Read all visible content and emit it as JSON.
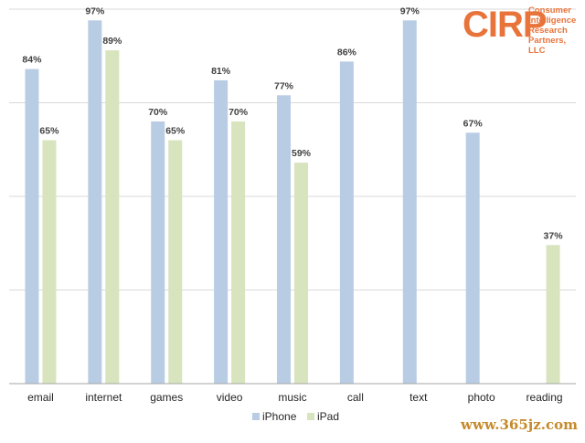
{
  "chart_data": {
    "type": "bar",
    "categories": [
      "email",
      "internet",
      "games",
      "video",
      "music",
      "call",
      "text",
      "photo",
      "reading"
    ],
    "series": [
      {
        "name": "iPhone",
        "color": "#b8cce4",
        "values": [
          84,
          97,
          70,
          81,
          77,
          86,
          97,
          67,
          null
        ]
      },
      {
        "name": "iPad",
        "color": "#d7e4bd",
        "values": [
          65,
          89,
          65,
          70,
          59,
          null,
          null,
          null,
          37
        ]
      }
    ],
    "data_labels": {
      "iPhone": [
        "84%",
        "97%",
        "70%",
        "81%",
        "77%",
        "86%",
        "97%",
        "67%",
        ""
      ],
      "iPad": [
        "65%",
        "89%",
        "65%",
        "70%",
        "59%",
        "",
        "",
        "",
        "37%"
      ]
    },
    "ylim": [
      0,
      100
    ],
    "grid": true,
    "legend_position": "bottom-center",
    "title": "",
    "xlabel": "",
    "ylabel": ""
  },
  "logo": {
    "mark": "CIRP",
    "text": "Consumer\nIntelligence\nResearch\nPartners, LLC"
  },
  "watermark": "www.365jz.com",
  "colors": {
    "iphone": "#b8cce4",
    "ipad": "#d7e4bd",
    "gridline": "#d9d9d9",
    "axis": "#a6a6a6",
    "label_text": "#404040",
    "logo": "#e8743b"
  }
}
